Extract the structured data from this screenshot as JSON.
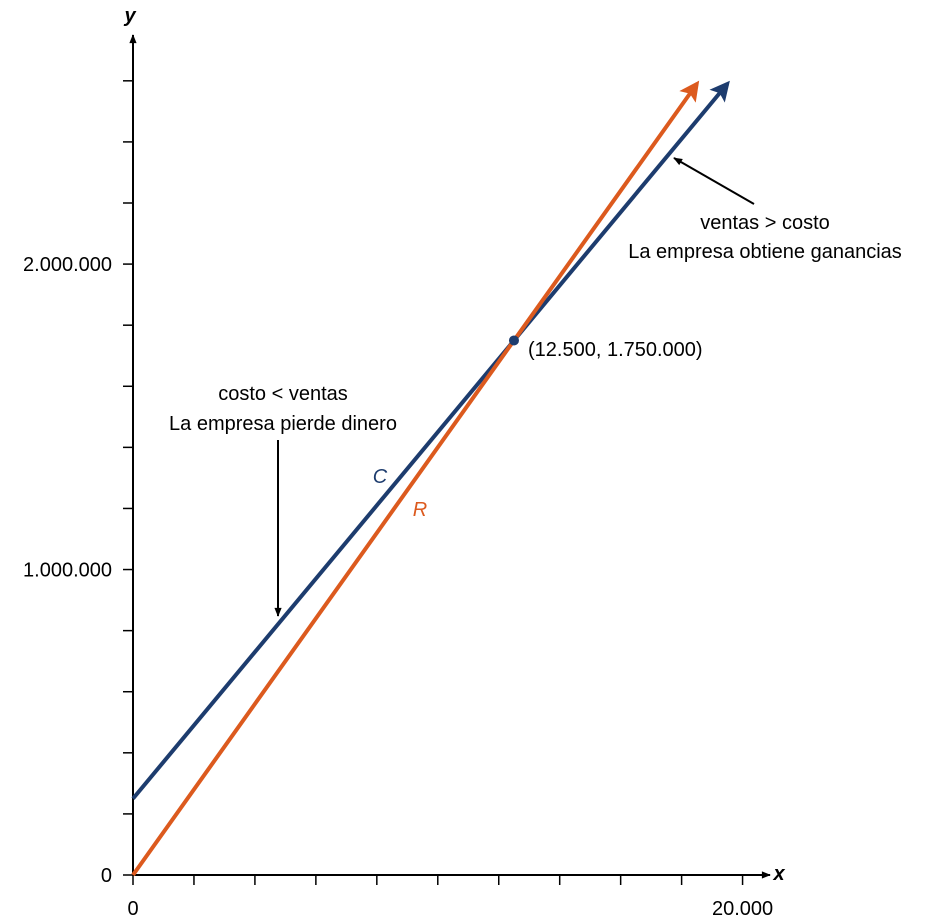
{
  "chart_data": {
    "type": "line",
    "x_label": "x",
    "y_label": "y",
    "xlim": [
      0,
      20900
    ],
    "ylim": [
      0,
      2750000
    ],
    "xticks": [
      0,
      {
        "value": 20000,
        "label": "20.000"
      }
    ],
    "xminorticks": [
      2000,
      4000,
      6000,
      8000,
      10000,
      12000,
      14000,
      16000,
      18000
    ],
    "yticks": [
      0,
      {
        "value": 1000000,
        "label": "1.000.000"
      },
      {
        "value": 2000000,
        "label": "2.000.000"
      }
    ],
    "yminorticks": [
      200000,
      400000,
      600000,
      800000,
      1200000,
      1400000,
      1600000,
      1800000,
      2200000,
      2400000,
      2600000
    ],
    "series": [
      {
        "name": "C",
        "color": "#1d3c6e",
        "x": [
          0,
          12500,
          19500
        ],
        "values": [
          250000,
          1750000,
          2590000
        ]
      },
      {
        "name": "R",
        "color": "#dc5a1e",
        "x": [
          0,
          12500,
          18500
        ],
        "values": [
          0,
          1750000,
          2590000
        ]
      }
    ],
    "point_label": "(12.500, 1.750.000)",
    "annotations": [
      "costo < ventas",
      "La empresa pierde dinero",
      "ventas > costo",
      "La empresa obtiene ganancias"
    ]
  }
}
